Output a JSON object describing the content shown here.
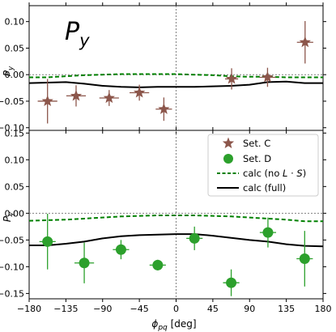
{
  "chart_data": [
    {
      "type": "scatter",
      "panel_title_main": "P",
      "panel_title_sub": "y",
      "ylabel": "P",
      "ylabel_sub": "y",
      "xlim": [
        -180,
        180
      ],
      "ylim": [
        -0.105,
        0.13
      ],
      "yticks": [
        -0.1,
        -0.05,
        0.0,
        0.05,
        0.1
      ],
      "ytick_labels": [
        "−0.10",
        "−0.05",
        "0.00",
        "0.05",
        "0.10"
      ],
      "grid": false,
      "reference_lines": {
        "y_zero": true,
        "x_zero": true
      },
      "series": [
        {
          "name": "Set. C",
          "marker": "star",
          "color": "#8c564b",
          "x": [
            -157.5,
            -122.5,
            -82,
            -45,
            -15,
            68,
            112,
            158
          ],
          "y": [
            -0.05,
            -0.04,
            -0.044,
            -0.034,
            -0.065,
            -0.008,
            -0.005,
            0.061
          ],
          "yerr": [
            0.042,
            0.02,
            0.015,
            0.015,
            0.022,
            0.02,
            0.018,
            0.04
          ],
          "xerr": [
            12,
            12,
            12,
            12,
            10,
            8,
            10,
            10
          ]
        },
        {
          "name": "calc (no L·S)",
          "style": "dashed",
          "color": "#008000",
          "x": [
            -180,
            -157.5,
            -135,
            -112.5,
            -90,
            -67.5,
            -45,
            -22.5,
            0,
            22.5,
            45,
            67.5,
            90,
            112.5,
            135,
            157.5,
            180
          ],
          "y": [
            -0.005,
            -0.005,
            -0.003,
            -0.001,
            0.0,
            0.001,
            0.001,
            0.001,
            0.001,
            0.0,
            -0.001,
            -0.003,
            -0.004,
            -0.004,
            -0.005,
            -0.005,
            -0.005
          ]
        },
        {
          "name": "calc (full)",
          "style": "solid",
          "color": "#000000",
          "x": [
            -180,
            -157.5,
            -135,
            -112.5,
            -90,
            -67.5,
            -45,
            -22.5,
            0,
            22.5,
            45,
            67.5,
            90,
            112.5,
            135,
            157.5,
            180
          ],
          "y": [
            -0.016,
            -0.015,
            -0.014,
            -0.017,
            -0.021,
            -0.023,
            -0.024,
            -0.023,
            -0.023,
            -0.023,
            -0.022,
            -0.021,
            -0.019,
            -0.014,
            -0.013,
            -0.016,
            -0.016
          ]
        }
      ]
    },
    {
      "type": "scatter",
      "ylabel": "P",
      "ylabel_sub": "y",
      "xlabel_main": "ϕ",
      "xlabel_sub": "pq",
      "xlabel_unit": " [deg]",
      "xlim": [
        -180,
        180
      ],
      "ylim": [
        -0.16,
        0.155
      ],
      "xticks": [
        -180,
        -135,
        -90,
        -45,
        0,
        45,
        90,
        135,
        180
      ],
      "xtick_labels": [
        "−180",
        "−135",
        "−90",
        "−45",
        "0",
        "45",
        "90",
        "135",
        "180"
      ],
      "yticks": [
        -0.15,
        -0.1,
        -0.05,
        0.0,
        0.05,
        0.1,
        0.15
      ],
      "ytick_labels": [
        "−0.15",
        "−0.10",
        "−0.05",
        "0.00",
        "0.05",
        "0.10",
        "0.15"
      ],
      "grid": false,
      "legend_position": "top-right",
      "reference_lines": {
        "y_zero": true,
        "x_zero": true
      },
      "series": [
        {
          "name": "Set. D",
          "marker": "circle",
          "color": "#2ca02c",
          "x": [
            -157.5,
            -112.5,
            -67.5,
            -22.5,
            22.5,
            67.5,
            112.5,
            157.5
          ],
          "y": [
            -0.053,
            -0.093,
            -0.068,
            -0.097,
            -0.047,
            -0.13,
            -0.036,
            -0.085
          ],
          "yerr": [
            0.052,
            0.038,
            0.018,
            0.01,
            0.022,
            0.025,
            0.028,
            0.052
          ],
          "xerr": [
            10,
            12,
            10,
            10,
            10,
            10,
            10,
            10
          ]
        },
        {
          "name": "calc (no L·S)",
          "style": "dashed",
          "color": "#008000",
          "x": [
            -180,
            -157.5,
            -135,
            -112.5,
            -90,
            -67.5,
            -45,
            -22.5,
            0,
            22.5,
            45,
            67.5,
            90,
            112.5,
            135,
            157.5,
            180
          ],
          "y": [
            -0.014,
            -0.013,
            -0.012,
            -0.01,
            -0.008,
            -0.006,
            -0.005,
            -0.004,
            -0.004,
            -0.004,
            -0.005,
            -0.006,
            -0.008,
            -0.01,
            -0.012,
            -0.015,
            -0.015
          ]
        },
        {
          "name": "calc (full)",
          "style": "solid",
          "color": "#000000",
          "x": [
            -180,
            -157.5,
            -135,
            -112.5,
            -90,
            -67.5,
            -45,
            -22.5,
            0,
            22.5,
            45,
            67.5,
            90,
            112.5,
            135,
            157.5,
            180
          ],
          "y": [
            -0.06,
            -0.06,
            -0.057,
            -0.053,
            -0.047,
            -0.043,
            -0.041,
            -0.04,
            -0.039,
            -0.039,
            -0.042,
            -0.046,
            -0.05,
            -0.053,
            -0.058,
            -0.061,
            -0.062
          ]
        }
      ]
    }
  ],
  "legend": {
    "entries": [
      {
        "label": "Set. C",
        "marker": "star",
        "color": "#8c564b"
      },
      {
        "label": "Set. D",
        "marker": "circle",
        "color": "#2ca02c"
      },
      {
        "label_prefix": "calc (no ",
        "label_L": "L",
        "label_dot": " · ",
        "label_S": "S",
        "label_suffix": ")",
        "style": "dashed",
        "color": "#008000"
      },
      {
        "label": "calc (full)",
        "style": "solid",
        "color": "#000000"
      }
    ]
  }
}
